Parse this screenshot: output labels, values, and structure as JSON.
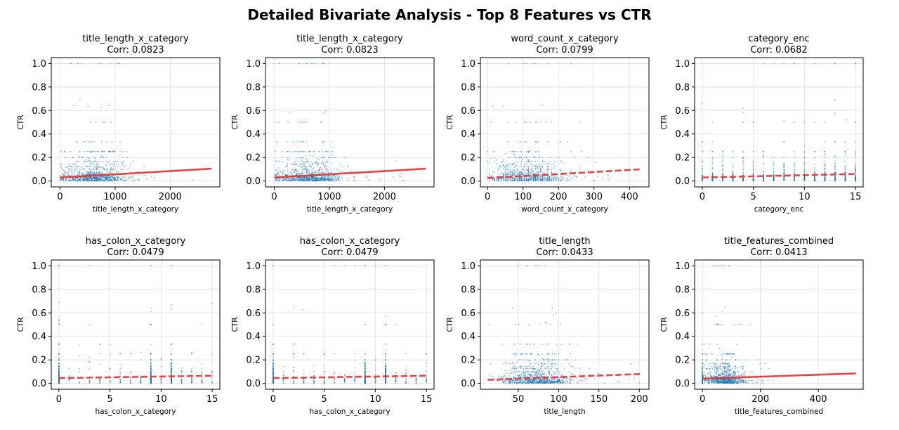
{
  "figure": {
    "title": "Detailed Bivariate Analysis - Top 8 Features vs CTR"
  },
  "colors": {
    "scatter": "#1f77b4",
    "trend": "#e8302e",
    "grid": "#dddddd",
    "axes": "#000000"
  },
  "chart_data": [
    {
      "type": "scatter",
      "title": "title_length_x_category",
      "subtitle": "Corr: 0.0823",
      "xlabel": "title_length_x_category",
      "ylabel": "CTR",
      "xlim": [
        -160,
        2900
      ],
      "ylim": [
        -0.05,
        1.05
      ],
      "xticks": [
        0,
        1000,
        2000
      ],
      "yticks": [
        0.0,
        0.2,
        0.4,
        0.6,
        0.8,
        1.0
      ],
      "grid": true,
      "trend": {
        "x": [
          0,
          2750
        ],
        "y": [
          0.03,
          0.105
        ],
        "style": "solid"
      },
      "distribution": {
        "kind": "continuous",
        "center": 600,
        "spread": 300,
        "max": 2600
      }
    },
    {
      "type": "scatter",
      "title": "title_length_x_category",
      "subtitle": "Corr: 0.0823",
      "xlabel": "title_length_x_category",
      "ylabel": "CTR",
      "xlim": [
        -160,
        2900
      ],
      "ylim": [
        -0.05,
        1.05
      ],
      "xticks": [
        0,
        1000,
        2000
      ],
      "yticks": [
        0.0,
        0.2,
        0.4,
        0.6,
        0.8,
        1.0
      ],
      "grid": true,
      "trend": {
        "x": [
          0,
          2750
        ],
        "y": [
          0.03,
          0.105
        ],
        "style": "solid"
      },
      "distribution": {
        "kind": "continuous",
        "center": 600,
        "spread": 300,
        "max": 2600
      }
    },
    {
      "type": "scatter",
      "title": "word_count_x_category",
      "subtitle": "Corr: 0.0799",
      "xlabel": "word_count_x_category",
      "ylabel": "CTR",
      "xlim": [
        -20,
        455
      ],
      "ylim": [
        -0.05,
        1.05
      ],
      "xticks": [
        0,
        100,
        200,
        300,
        400
      ],
      "yticks": [
        0.0,
        0.2,
        0.4,
        0.6,
        0.8,
        1.0
      ],
      "grid": true,
      "trend": {
        "x": [
          0,
          435
        ],
        "y": [
          0.025,
          0.1
        ],
        "style": "dashed"
      },
      "distribution": {
        "kind": "stripes",
        "center": 110,
        "spread": 50,
        "max": 430
      }
    },
    {
      "type": "scatter",
      "title": "category_enc",
      "subtitle": "Corr: 0.0682",
      "xlabel": "category_enc",
      "ylabel": "CTR",
      "xlim": [
        -0.75,
        15.75
      ],
      "ylim": [
        -0.05,
        1.05
      ],
      "xticks": [
        0,
        5,
        10,
        15
      ],
      "yticks": [
        0.0,
        0.2,
        0.4,
        0.6,
        0.8,
        1.0
      ],
      "grid": true,
      "trend": {
        "x": [
          0,
          15
        ],
        "y": [
          0.03,
          0.06
        ],
        "style": "dashed"
      },
      "distribution": {
        "kind": "discrete",
        "values": [
          0,
          1,
          2,
          3,
          4,
          5,
          6,
          7,
          8,
          9,
          10,
          11,
          12,
          13,
          14,
          15
        ],
        "max": 15
      }
    },
    {
      "type": "scatter",
      "title": "has_colon_x_category",
      "subtitle": "Corr: 0.0479",
      "xlabel": "has_colon_x_category",
      "ylabel": "CTR",
      "xlim": [
        -0.75,
        15.75
      ],
      "ylim": [
        -0.05,
        1.05
      ],
      "xticks": [
        0,
        5,
        10,
        15
      ],
      "yticks": [
        0.0,
        0.2,
        0.4,
        0.6,
        0.8,
        1.0
      ],
      "grid": true,
      "trend": {
        "x": [
          0,
          15
        ],
        "y": [
          0.045,
          0.065
        ],
        "style": "dashed"
      },
      "distribution": {
        "kind": "discrete",
        "values": [
          0,
          1,
          2,
          3,
          4,
          5,
          6,
          7,
          8,
          9,
          10,
          11,
          12,
          13,
          14,
          15
        ],
        "max": 15,
        "heavy": [
          0,
          9,
          11
        ]
      }
    },
    {
      "type": "scatter",
      "title": "has_colon_x_category",
      "subtitle": "Corr: 0.0479",
      "xlabel": "has_colon_x_category",
      "ylabel": "CTR",
      "xlim": [
        -0.75,
        15.75
      ],
      "ylim": [
        -0.05,
        1.05
      ],
      "xticks": [
        0,
        5,
        10,
        15
      ],
      "yticks": [
        0.0,
        0.2,
        0.4,
        0.6,
        0.8,
        1.0
      ],
      "grid": true,
      "trend": {
        "x": [
          0,
          15
        ],
        "y": [
          0.045,
          0.065
        ],
        "style": "dashed"
      },
      "distribution": {
        "kind": "discrete",
        "values": [
          0,
          1,
          2,
          3,
          4,
          5,
          6,
          7,
          8,
          9,
          10,
          11,
          12,
          13,
          14,
          15
        ],
        "max": 15,
        "heavy": [
          0,
          9,
          11
        ]
      }
    },
    {
      "type": "scatter",
      "title": "title_length",
      "subtitle": "Corr: 0.0433",
      "xlabel": "title_length",
      "ylabel": "CTR",
      "xlim": [
        3,
        212
      ],
      "ylim": [
        -0.05,
        1.05
      ],
      "xticks": [
        50,
        100,
        150,
        200
      ],
      "yticks": [
        0.0,
        0.2,
        0.4,
        0.6,
        0.8,
        1.0
      ],
      "grid": true,
      "trend": {
        "x": [
          12,
          202
        ],
        "y": [
          0.03,
          0.08
        ],
        "style": "dashed"
      },
      "distribution": {
        "kind": "continuous",
        "center": 72,
        "spread": 22,
        "max": 200,
        "min": 12
      }
    },
    {
      "type": "scatter",
      "title": "title_features_combined",
      "subtitle": "Corr: 0.0413",
      "xlabel": "title_features_combined",
      "ylabel": "CTR",
      "xlim": [
        -27,
        555
      ],
      "ylim": [
        -0.05,
        1.05
      ],
      "xticks": [
        0,
        200,
        400
      ],
      "yticks": [
        0.0,
        0.2,
        0.4,
        0.6,
        0.8,
        1.0
      ],
      "grid": true,
      "trend": {
        "x": [
          0,
          530
        ],
        "y": [
          0.04,
          0.085
        ],
        "style": "solid"
      },
      "distribution": {
        "kind": "continuous",
        "center": 75,
        "spread": 35,
        "max": 530,
        "zeroStripe": true
      }
    }
  ]
}
